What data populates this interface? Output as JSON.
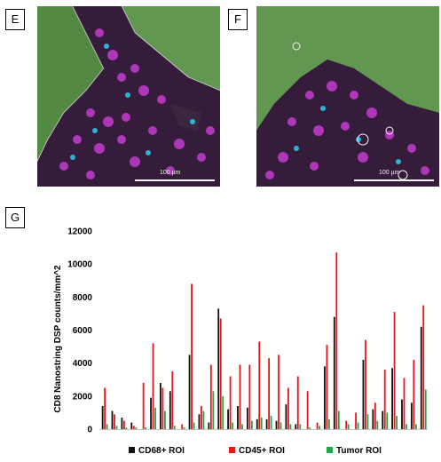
{
  "panels": {
    "e": {
      "label": "E",
      "scale": "100 µm"
    },
    "f": {
      "label": "F",
      "scale": "100 µm"
    },
    "g": {
      "label": "G"
    }
  },
  "colors": {
    "cd68": "#111111",
    "cd45": "#e8141a",
    "tumor": "#1ea64a",
    "tissue_green": "#6fc45a",
    "tissue_magenta": "#c23bd0",
    "tissue_cyan": "#2bc4e8"
  },
  "chart_data": {
    "type": "bar",
    "title": "",
    "xlabel": "",
    "ylabel": "CD8 Nanostring DSP counts/mm^2",
    "ylim": [
      0,
      12000
    ],
    "yticks": [
      0,
      2000,
      4000,
      6000,
      8000,
      10000,
      12000
    ],
    "ytick_labels": [
      "0",
      "2000",
      "4000",
      "6000",
      "8000",
      "10000",
      "12000"
    ],
    "grid": false,
    "legend_position": "bottom",
    "series": [
      {
        "name": "CD68+ ROI",
        "color": "#111111",
        "values": [
          1400,
          1100,
          700,
          400,
          0,
          1900,
          2800,
          2300,
          0,
          4500,
          900,
          400,
          7300,
          1200,
          1400,
          1300,
          600,
          600,
          500,
          1500,
          300,
          0,
          0,
          3800,
          6800,
          0,
          0,
          4200,
          1200,
          1100,
          3700,
          1800,
          1600,
          6200
        ]
      },
      {
        "name": "CD45+ ROI",
        "color": "#e8141a",
        "values": [
          2500,
          900,
          500,
          200,
          2800,
          5200,
          2500,
          3500,
          300,
          8800,
          1400,
          3900,
          6700,
          3200,
          3900,
          3900,
          5300,
          4300,
          4500,
          2500,
          3200,
          2300,
          400,
          5100,
          10700,
          500,
          1000,
          5400,
          1600,
          3600,
          7100,
          3100,
          4200,
          7500
        ]
      },
      {
        "name": "Tumor ROI",
        "color": "#1ea64a",
        "values": [
          300,
          200,
          100,
          100,
          100,
          1300,
          1100,
          200,
          100,
          400,
          1100,
          2300,
          2000,
          400,
          300,
          500,
          700,
          800,
          400,
          300,
          300,
          100,
          200,
          600,
          1100,
          300,
          400,
          900,
          500,
          1000,
          800,
          300,
          300,
          2400
        ]
      }
    ]
  }
}
